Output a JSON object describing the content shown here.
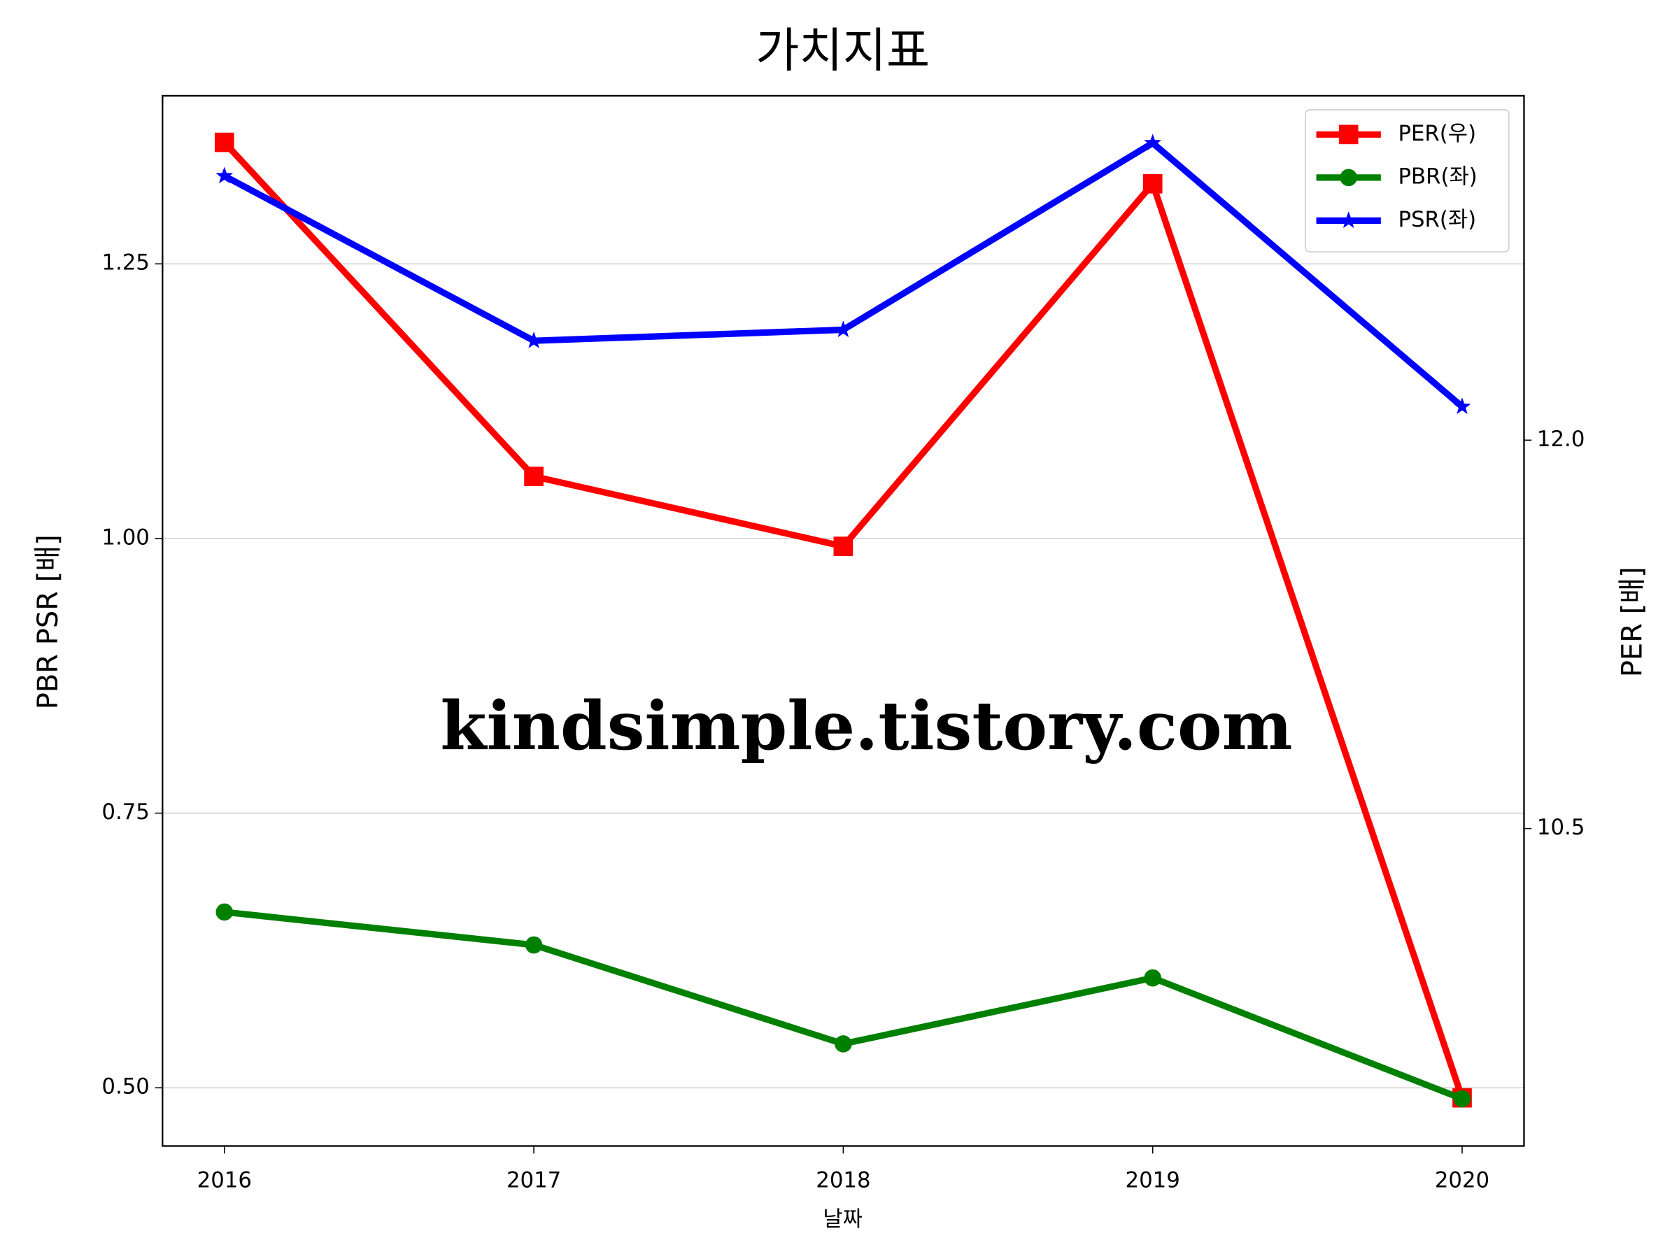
{
  "chart_data": {
    "type": "line",
    "title": "가치지표",
    "xlabel": "날짜",
    "ylabel": "PBR PSR [배]",
    "ylabel_color": "#008000",
    "y2label": "PER [배]",
    "y2label_color": "#ff0000",
    "watermark": "kindsimple.tistory.com",
    "x": [
      2016,
      2017,
      2018,
      2019,
      2020
    ],
    "xlim": [
      2015.8,
      2020.2
    ],
    "xticks": [
      2016,
      2017,
      2018,
      2019,
      2020
    ],
    "ylim": [
      0.447,
      1.403
    ],
    "yticks": [
      {
        "value": 0.5,
        "label": "0.50"
      },
      0.75,
      {
        "value": 1.0,
        "label": "1.00"
      },
      1.25
    ],
    "y2lim": [
      9.274,
      13.33
    ],
    "y2ticks": [
      {
        "value": 10.5,
        "label": "10.5"
      },
      {
        "value": 12.0,
        "label": "12.0"
      }
    ],
    "grid": true,
    "legend": "upper right",
    "series": [
      {
        "name": "PER(우)",
        "color": "#ff0000",
        "marker": "square",
        "axis": "y2",
        "values": [
          13.15,
          11.86,
          11.59,
          12.99,
          9.46
        ]
      },
      {
        "name": "PBR(좌)",
        "color": "#008000",
        "marker": "circle",
        "values": [
          0.66,
          0.63,
          0.54,
          0.6,
          0.49
        ]
      },
      {
        "name": "PSR(좌)",
        "color": "#0000ff",
        "marker": "star",
        "values": [
          1.33,
          1.18,
          1.19,
          1.36,
          1.12
        ]
      }
    ]
  }
}
